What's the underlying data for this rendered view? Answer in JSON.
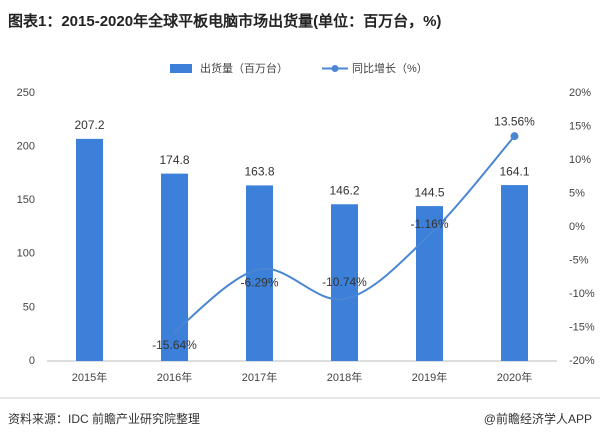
{
  "chart_data": {
    "type": "bar-line",
    "title": "图表1：2015-2020年全球平板电脑市场出货量(单位：百万台，%)",
    "source": "资料来源：IDC 前瞻产业研究院整理",
    "footer": "@前瞻经济学人APP",
    "categories": [
      "2015年",
      "2016年",
      "2017年",
      "2018年",
      "2019年",
      "2020年"
    ],
    "series": [
      {
        "name": "出货量（百万台）",
        "color": "#3d80d9",
        "type": "bar",
        "values": [
          207.2,
          174.8,
          163.8,
          146.2,
          144.5,
          164.1
        ]
      },
      {
        "name": "同比增长（%）",
        "color": "#4a86d4",
        "type": "line",
        "axis": "y2",
        "values": [
          null,
          -15.64,
          -6.29,
          -10.74,
          -1.16,
          13.56
        ],
        "value_labels": [
          null,
          "-15.64%",
          "-6.29%",
          "-10.74%",
          "-1.16%",
          "13.56%"
        ]
      }
    ],
    "ylim": [
      0,
      250
    ],
    "yticks": [
      0,
      50,
      100,
      150,
      200,
      250
    ],
    "y2lim": [
      -20,
      20
    ],
    "y2ticks": [
      {
        "value": -20,
        "label": "-20%"
      },
      {
        "value": -15,
        "label": "-15%"
      },
      {
        "value": -10,
        "label": "-10%"
      },
      {
        "value": -5,
        "label": "-5%"
      },
      {
        "value": 0,
        "label": "0%"
      },
      {
        "value": 5,
        "label": "5%"
      },
      {
        "value": 10,
        "label": "10%"
      },
      {
        "value": 15,
        "label": "15%"
      },
      {
        "value": 20,
        "label": "20%"
      }
    ],
    "legend": "top"
  }
}
